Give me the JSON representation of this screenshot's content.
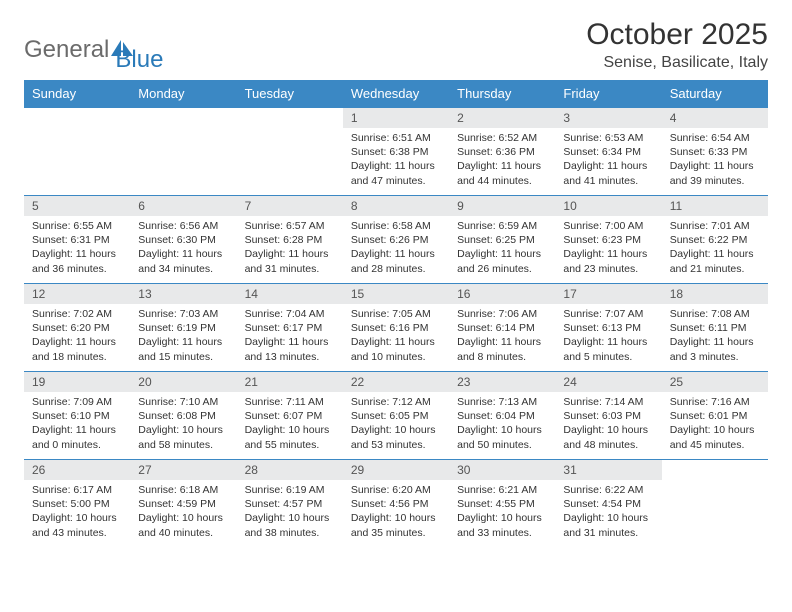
{
  "brand": {
    "text_gray": "General",
    "text_blue": "Blue",
    "icon_color": "#2a7ab8"
  },
  "title": "October 2025",
  "subtitle": "Senise, Basilicate, Italy",
  "colors": {
    "header_bg": "#3b88c4",
    "header_fg": "#ffffff",
    "daynum_bg": "#e8e9ea",
    "border": "#3b88c4",
    "text": "#333333",
    "logo_gray": "#6b6b6b",
    "logo_blue": "#2a7ab8"
  },
  "day_names": [
    "Sunday",
    "Monday",
    "Tuesday",
    "Wednesday",
    "Thursday",
    "Friday",
    "Saturday"
  ],
  "weeks": [
    [
      {
        "n": "",
        "sr": "",
        "ss": "",
        "dl": ""
      },
      {
        "n": "",
        "sr": "",
        "ss": "",
        "dl": ""
      },
      {
        "n": "",
        "sr": "",
        "ss": "",
        "dl": ""
      },
      {
        "n": "1",
        "sr": "6:51 AM",
        "ss": "6:38 PM",
        "dl": "11 hours and 47 minutes."
      },
      {
        "n": "2",
        "sr": "6:52 AM",
        "ss": "6:36 PM",
        "dl": "11 hours and 44 minutes."
      },
      {
        "n": "3",
        "sr": "6:53 AM",
        "ss": "6:34 PM",
        "dl": "11 hours and 41 minutes."
      },
      {
        "n": "4",
        "sr": "6:54 AM",
        "ss": "6:33 PM",
        "dl": "11 hours and 39 minutes."
      }
    ],
    [
      {
        "n": "5",
        "sr": "6:55 AM",
        "ss": "6:31 PM",
        "dl": "11 hours and 36 minutes."
      },
      {
        "n": "6",
        "sr": "6:56 AM",
        "ss": "6:30 PM",
        "dl": "11 hours and 34 minutes."
      },
      {
        "n": "7",
        "sr": "6:57 AM",
        "ss": "6:28 PM",
        "dl": "11 hours and 31 minutes."
      },
      {
        "n": "8",
        "sr": "6:58 AM",
        "ss": "6:26 PM",
        "dl": "11 hours and 28 minutes."
      },
      {
        "n": "9",
        "sr": "6:59 AM",
        "ss": "6:25 PM",
        "dl": "11 hours and 26 minutes."
      },
      {
        "n": "10",
        "sr": "7:00 AM",
        "ss": "6:23 PM",
        "dl": "11 hours and 23 minutes."
      },
      {
        "n": "11",
        "sr": "7:01 AM",
        "ss": "6:22 PM",
        "dl": "11 hours and 21 minutes."
      }
    ],
    [
      {
        "n": "12",
        "sr": "7:02 AM",
        "ss": "6:20 PM",
        "dl": "11 hours and 18 minutes."
      },
      {
        "n": "13",
        "sr": "7:03 AM",
        "ss": "6:19 PM",
        "dl": "11 hours and 15 minutes."
      },
      {
        "n": "14",
        "sr": "7:04 AM",
        "ss": "6:17 PM",
        "dl": "11 hours and 13 minutes."
      },
      {
        "n": "15",
        "sr": "7:05 AM",
        "ss": "6:16 PM",
        "dl": "11 hours and 10 minutes."
      },
      {
        "n": "16",
        "sr": "7:06 AM",
        "ss": "6:14 PM",
        "dl": "11 hours and 8 minutes."
      },
      {
        "n": "17",
        "sr": "7:07 AM",
        "ss": "6:13 PM",
        "dl": "11 hours and 5 minutes."
      },
      {
        "n": "18",
        "sr": "7:08 AM",
        "ss": "6:11 PM",
        "dl": "11 hours and 3 minutes."
      }
    ],
    [
      {
        "n": "19",
        "sr": "7:09 AM",
        "ss": "6:10 PM",
        "dl": "11 hours and 0 minutes."
      },
      {
        "n": "20",
        "sr": "7:10 AM",
        "ss": "6:08 PM",
        "dl": "10 hours and 58 minutes."
      },
      {
        "n": "21",
        "sr": "7:11 AM",
        "ss": "6:07 PM",
        "dl": "10 hours and 55 minutes."
      },
      {
        "n": "22",
        "sr": "7:12 AM",
        "ss": "6:05 PM",
        "dl": "10 hours and 53 minutes."
      },
      {
        "n": "23",
        "sr": "7:13 AM",
        "ss": "6:04 PM",
        "dl": "10 hours and 50 minutes."
      },
      {
        "n": "24",
        "sr": "7:14 AM",
        "ss": "6:03 PM",
        "dl": "10 hours and 48 minutes."
      },
      {
        "n": "25",
        "sr": "7:16 AM",
        "ss": "6:01 PM",
        "dl": "10 hours and 45 minutes."
      }
    ],
    [
      {
        "n": "26",
        "sr": "6:17 AM",
        "ss": "5:00 PM",
        "dl": "10 hours and 43 minutes."
      },
      {
        "n": "27",
        "sr": "6:18 AM",
        "ss": "4:59 PM",
        "dl": "10 hours and 40 minutes."
      },
      {
        "n": "28",
        "sr": "6:19 AM",
        "ss": "4:57 PM",
        "dl": "10 hours and 38 minutes."
      },
      {
        "n": "29",
        "sr": "6:20 AM",
        "ss": "4:56 PM",
        "dl": "10 hours and 35 minutes."
      },
      {
        "n": "30",
        "sr": "6:21 AM",
        "ss": "4:55 PM",
        "dl": "10 hours and 33 minutes."
      },
      {
        "n": "31",
        "sr": "6:22 AM",
        "ss": "4:54 PM",
        "dl": "10 hours and 31 minutes."
      },
      {
        "n": "",
        "sr": "",
        "ss": "",
        "dl": ""
      }
    ]
  ],
  "labels": {
    "sunrise": "Sunrise:",
    "sunset": "Sunset:",
    "daylight": "Daylight:"
  }
}
